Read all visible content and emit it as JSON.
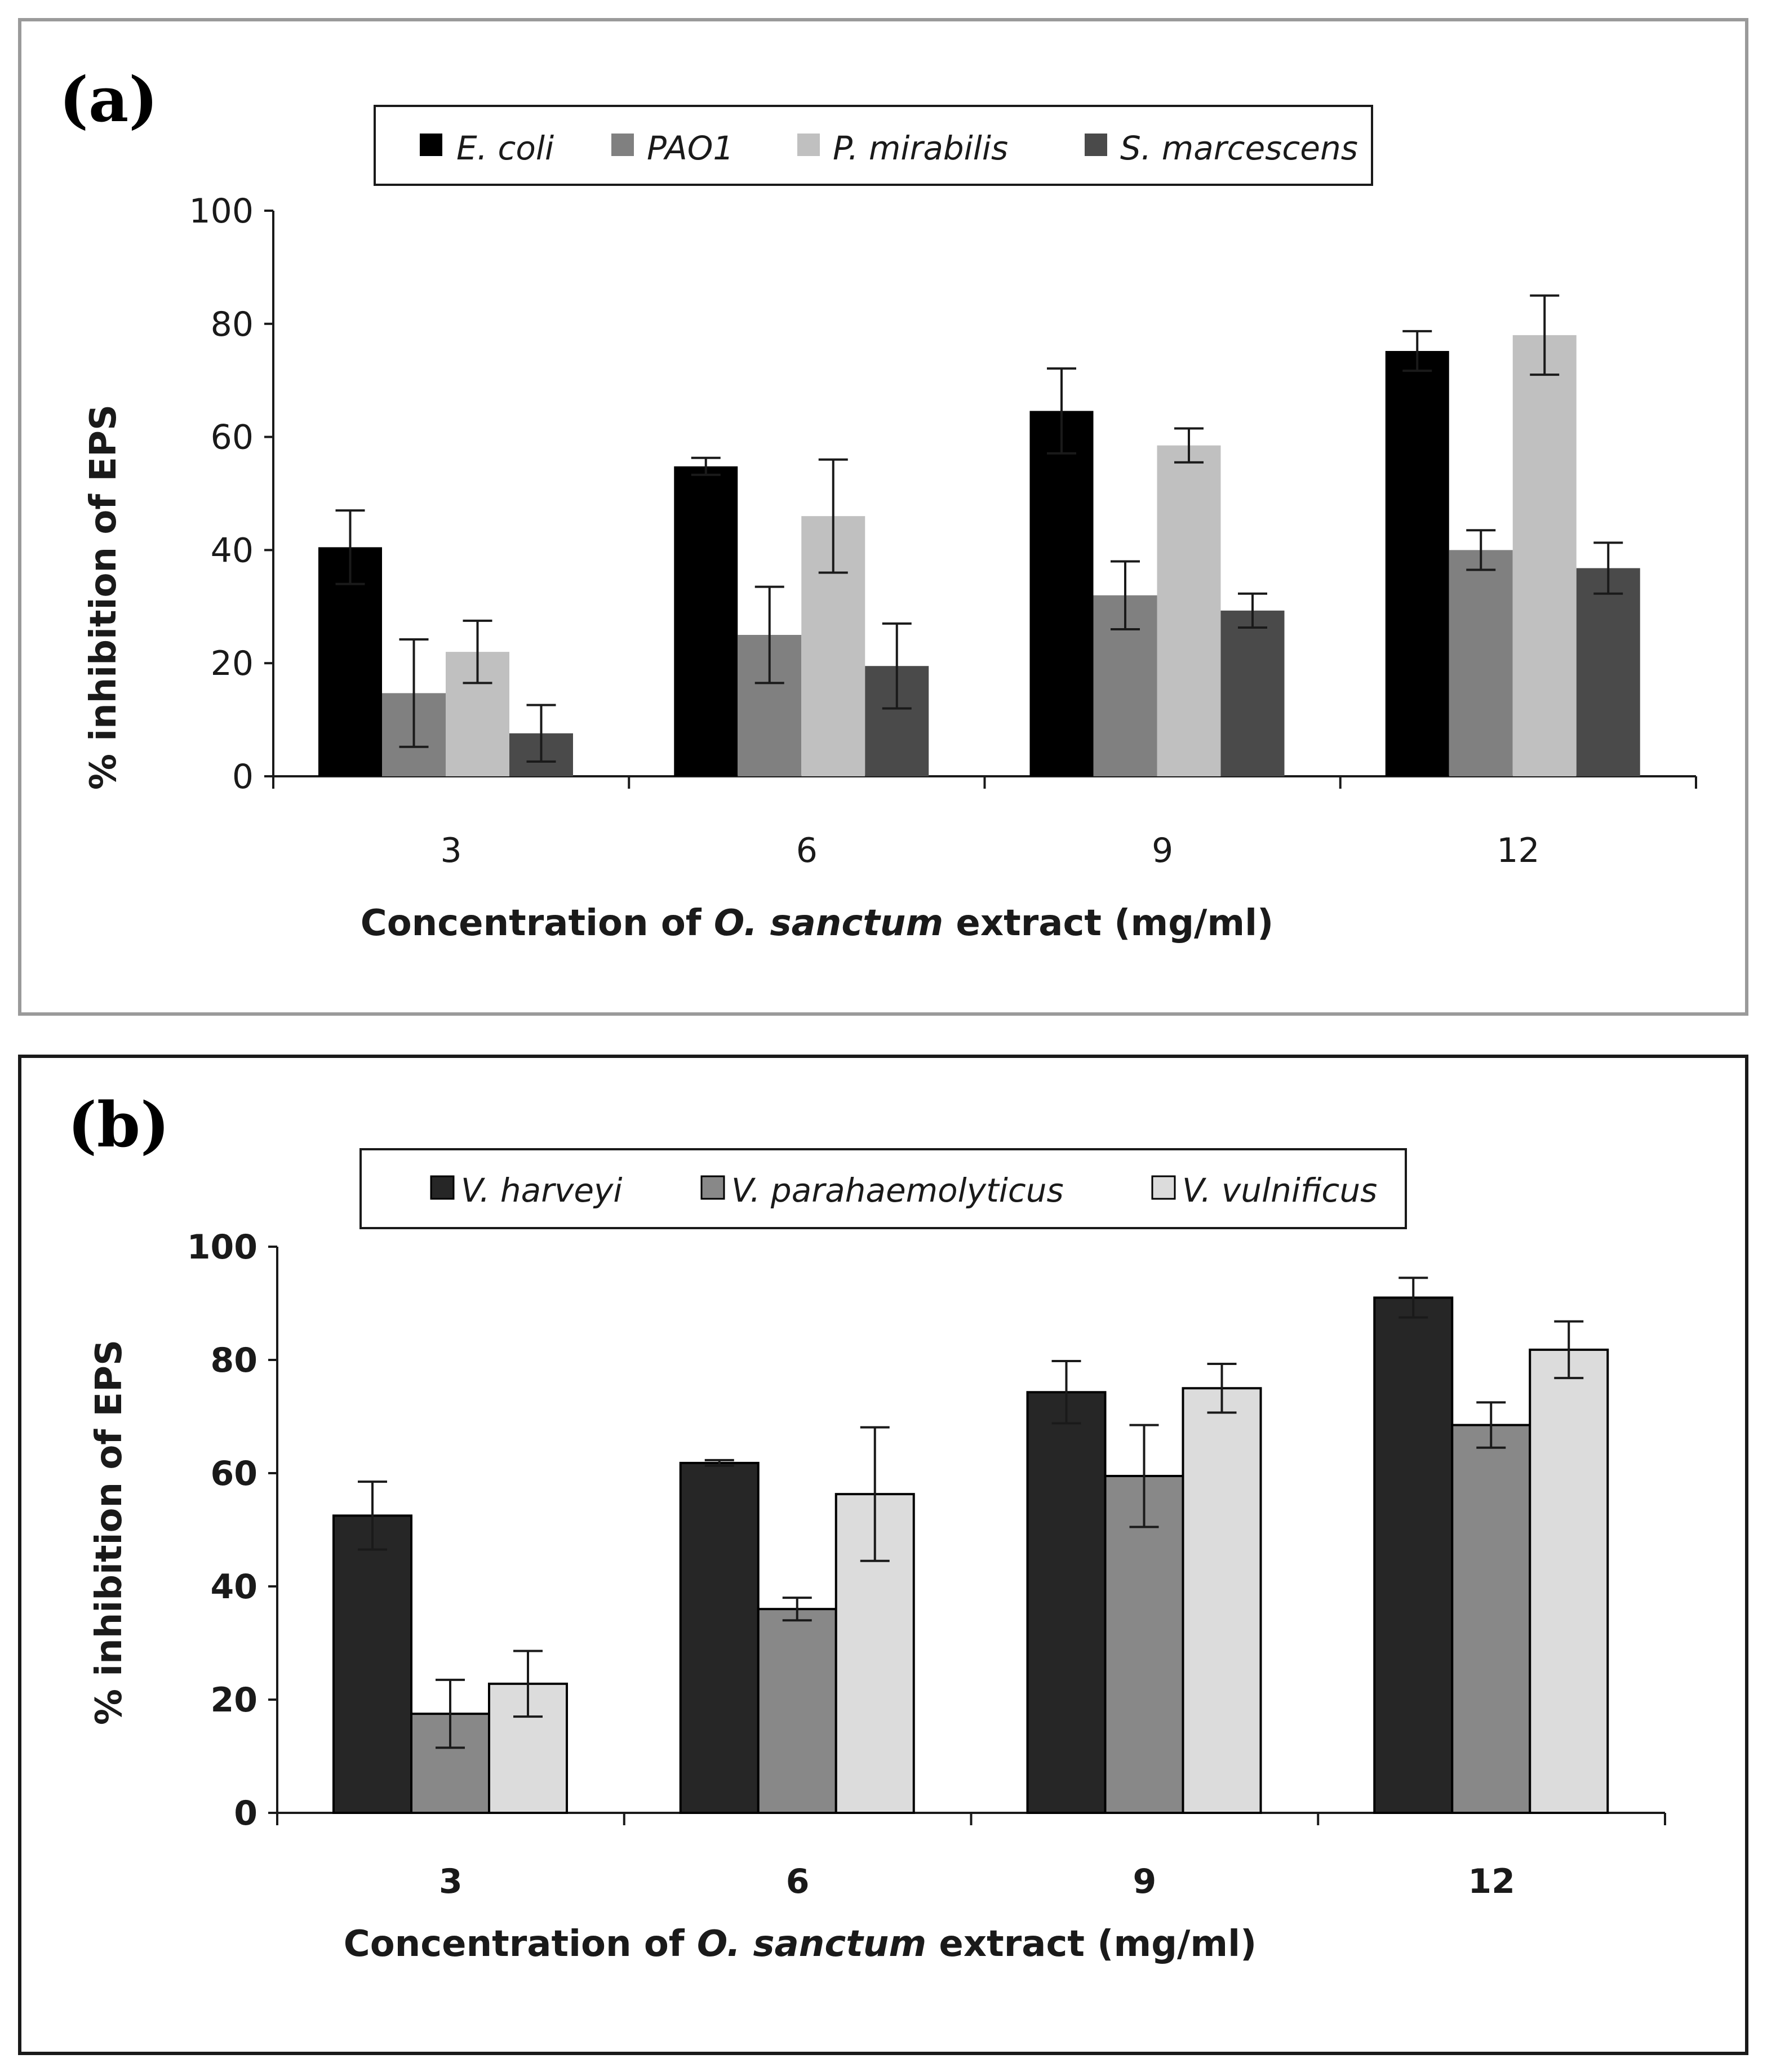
{
  "chart_data": [
    {
      "type": "bar",
      "panel_label": "(a)",
      "categories": [
        "3",
        "6",
        "9",
        "12"
      ],
      "series": [
        {
          "name": "E. coli",
          "color": "#000000",
          "values": [
            40.5,
            54.8,
            64.6,
            75.2
          ],
          "errors": [
            6.5,
            1.5,
            7.5,
            3.5
          ]
        },
        {
          "name": "PAO1",
          "color": "#808080",
          "values": [
            14.7,
            25.0,
            32.0,
            40.0
          ],
          "errors": [
            9.5,
            8.5,
            6.0,
            3.5
          ]
        },
        {
          "name": "P. mirabilis",
          "color": "#c0c0c0",
          "values": [
            22.0,
            46.0,
            58.5,
            78.0
          ],
          "errors": [
            5.5,
            10.0,
            3.0,
            7.0
          ]
        },
        {
          "name": "S. marcescens",
          "color": "#4a4a4a",
          "values": [
            7.6,
            19.5,
            29.3,
            36.8
          ],
          "errors": [
            5.0,
            7.5,
            3.0,
            4.5
          ]
        }
      ],
      "yticks": [
        "0",
        "20",
        "40",
        "60",
        "80",
        "100"
      ],
      "ylim": [
        0,
        100
      ],
      "ylabel": "% inhibition of EPS",
      "xlabel": {
        "pre": "Concentration of ",
        "italic": "O. sanctum",
        "post": " extract (mg/ml)"
      },
      "legend_position": "top"
    },
    {
      "type": "bar",
      "panel_label": "(b)",
      "categories": [
        "3",
        "6",
        "9",
        "12"
      ],
      "series": [
        {
          "name": "V. harveyi",
          "color": "#262626",
          "values": [
            52.5,
            61.8,
            74.3,
            91.0
          ],
          "errors": [
            6.0,
            0.5,
            5.5,
            3.5
          ]
        },
        {
          "name": "V. parahaemolyticus",
          "color": "#888888",
          "values": [
            17.5,
            36.0,
            59.5,
            68.5
          ],
          "errors": [
            6.0,
            2.0,
            9.0,
            4.0
          ]
        },
        {
          "name": "V. vulnificus",
          "color": "#dcdcdc",
          "values": [
            22.8,
            56.3,
            75.0,
            81.8
          ],
          "errors": [
            5.8,
            11.8,
            4.3,
            5.0
          ]
        }
      ],
      "yticks": [
        "0",
        "20",
        "40",
        "60",
        "80",
        "100"
      ],
      "ylim": [
        0,
        100
      ],
      "ylabel": "% inhibition of EPS",
      "xlabel": {
        "pre": "Concentration of ",
        "italic": "O. sanctum",
        "post": " extract (mg/ml)"
      },
      "legend_position": "top"
    }
  ]
}
